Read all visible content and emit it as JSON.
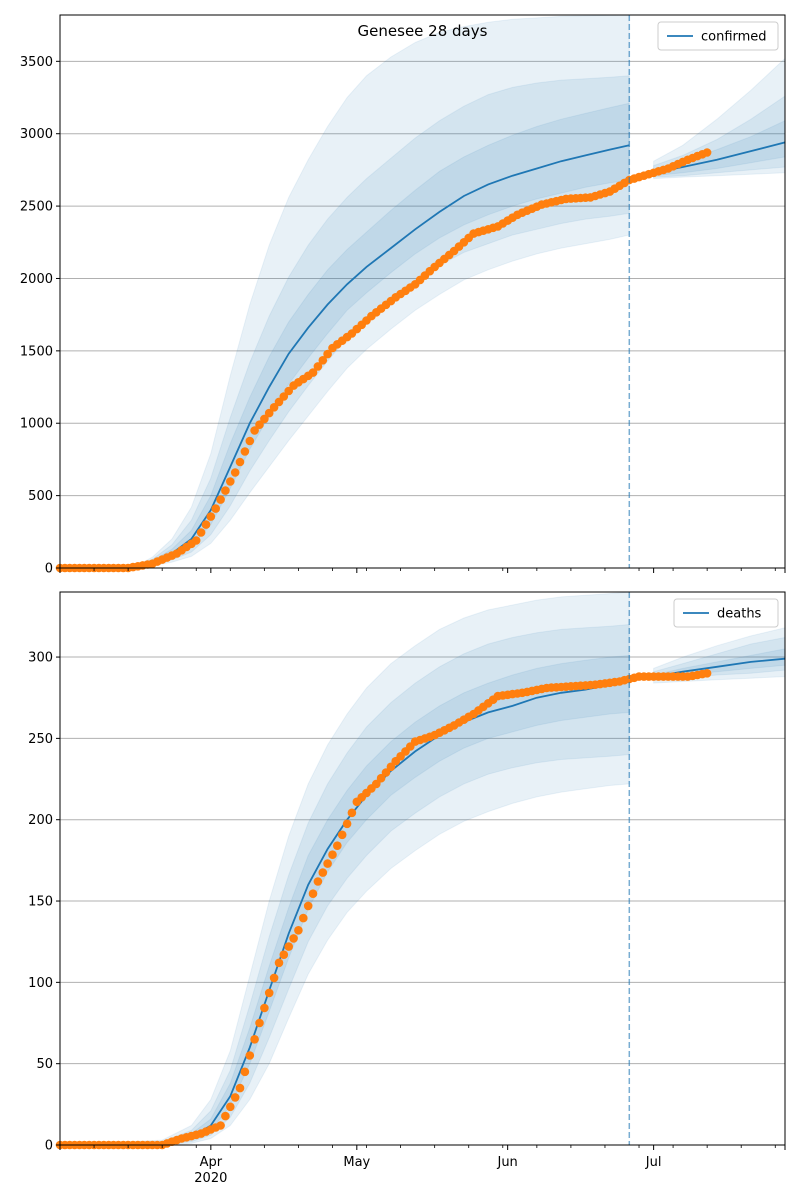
{
  "chart_data": [
    {
      "type": "line",
      "title": "Genesee 28 days",
      "xlabel": "",
      "ylabel": "",
      "x_range": [
        "2020-03-01",
        "2020-07-28"
      ],
      "ylim": [
        0,
        3820
      ],
      "yticks": [
        0,
        500,
        1000,
        1500,
        2000,
        2500,
        3000,
        3500
      ],
      "grid": "horizontal",
      "legend": {
        "placement": "top-right",
        "entries": [
          "confirmed"
        ]
      },
      "forecast_start": "2020-06-26",
      "series": [
        {
          "name": "confirmed",
          "kind": "model",
          "color": "#1f77b4",
          "x": [
            "2020-03-01",
            "2020-03-10",
            "2020-03-17",
            "2020-03-20",
            "2020-03-24",
            "2020-03-28",
            "2020-04-01",
            "2020-04-05",
            "2020-04-09",
            "2020-04-13",
            "2020-04-17",
            "2020-04-21",
            "2020-04-25",
            "2020-04-29",
            "2020-05-03",
            "2020-05-08",
            "2020-05-13",
            "2020-05-18",
            "2020-05-23",
            "2020-05-28",
            "2020-06-02",
            "2020-06-07",
            "2020-06-12",
            "2020-06-17",
            "2020-06-22",
            "2020-06-26",
            "2020-07-01",
            "2020-07-07",
            "2020-07-14",
            "2020-07-21",
            "2020-07-28"
          ],
          "y": [
            0,
            0,
            10,
            40,
            100,
            200,
            400,
            700,
            1000,
            1250,
            1480,
            1660,
            1820,
            1960,
            2080,
            2210,
            2340,
            2460,
            2570,
            2650,
            2710,
            2760,
            2810,
            2850,
            2890,
            2920,
            2730,
            2770,
            2820,
            2880,
            2940
          ],
          "bands": {
            "q25": [
              0,
              0,
              8,
              30,
              75,
              150,
              300,
              550,
              820,
              1050,
              1270,
              1450,
              1620,
              1780,
              1900,
              2040,
              2170,
              2280,
              2370,
              2440,
              2500,
              2550,
              2590,
              2630,
              2660,
              2680,
              2710,
              2730,
              2760,
              2800,
              2840
            ],
            "q75": [
              0,
              0,
              12,
              50,
              130,
              260,
              500,
              860,
              1180,
              1460,
              1700,
              1890,
              2060,
              2200,
              2320,
              2470,
              2610,
              2740,
              2840,
              2920,
              2990,
              3050,
              3100,
              3140,
              3180,
              3210,
              2750,
              2810,
              2890,
              2980,
              3090
            ],
            "q10": [
              0,
              0,
              6,
              22,
              55,
              110,
              230,
              430,
              670,
              880,
              1080,
              1260,
              1430,
              1590,
              1720,
              1860,
              1990,
              2090,
              2180,
              2240,
              2300,
              2340,
              2380,
              2410,
              2430,
              2450,
              2700,
              2710,
              2730,
              2750,
              2770
            ],
            "q90": [
              0,
              0,
              15,
              60,
              160,
              330,
              620,
              1040,
              1420,
              1740,
              2010,
              2230,
              2410,
              2560,
              2690,
              2830,
              2970,
              3090,
              3190,
              3270,
              3320,
              3350,
              3370,
              3380,
              3390,
              3400,
              2780,
              2850,
              2960,
              3100,
              3260
            ],
            "q02": [
              0,
              0,
              4,
              15,
              40,
              80,
              170,
              330,
              520,
              700,
              880,
              1050,
              1220,
              1380,
              1510,
              1650,
              1780,
              1890,
              1990,
              2060,
              2120,
              2170,
              2210,
              2240,
              2270,
              2300,
              2690,
              2700,
              2710,
              2720,
              2730
            ],
            "q98": [
              0,
              0,
              20,
              75,
              200,
              420,
              790,
              1330,
              1820,
              2230,
              2560,
              2820,
              3050,
              3250,
              3400,
              3530,
              3630,
              3700,
              3740,
              3770,
              3790,
              3800,
              3810,
              3815,
              3818,
              3820,
              2810,
              2920,
              3100,
              3300,
              3520
            ]
          }
        },
        {
          "name": "confirmed observed",
          "kind": "observed",
          "color": "#ff7f0e",
          "x": [
            "2020-03-01",
            "2020-03-15",
            "2020-03-20",
            "2020-03-25",
            "2020-03-29",
            "2020-04-02",
            "2020-04-06",
            "2020-04-10",
            "2020-04-14",
            "2020-04-18",
            "2020-04-22",
            "2020-04-26",
            "2020-04-30",
            "2020-05-04",
            "2020-05-09",
            "2020-05-13",
            "2020-05-17",
            "2020-05-21",
            "2020-05-25",
            "2020-05-30",
            "2020-06-03",
            "2020-06-08",
            "2020-06-13",
            "2020-06-18",
            "2020-06-22",
            "2020-06-26",
            "2020-06-30",
            "2020-07-04",
            "2020-07-08",
            "2020-07-12"
          ],
          "y": [
            0,
            0,
            30,
            100,
            190,
            410,
            660,
            950,
            1110,
            1260,
            1350,
            1520,
            1620,
            1740,
            1870,
            1960,
            2080,
            2190,
            2310,
            2360,
            2440,
            2510,
            2550,
            2560,
            2600,
            2680,
            2720,
            2760,
            2820,
            2870
          ]
        }
      ]
    },
    {
      "type": "line",
      "title": "",
      "xlabel": "",
      "ylabel": "",
      "x_range": [
        "2020-03-01",
        "2020-07-28"
      ],
      "xticks": [
        "Apr\n2020",
        "May",
        "Jun",
        "Jul"
      ],
      "ylim": [
        0,
        340
      ],
      "yticks": [
        0,
        50,
        100,
        150,
        200,
        250,
        300
      ],
      "grid": "horizontal",
      "legend": {
        "placement": "top-right",
        "entries": [
          "deaths"
        ]
      },
      "forecast_start": "2020-06-26",
      "series": [
        {
          "name": "deaths",
          "kind": "model",
          "color": "#1f77b4",
          "x": [
            "2020-03-01",
            "2020-03-22",
            "2020-03-28",
            "2020-04-01",
            "2020-04-05",
            "2020-04-09",
            "2020-04-13",
            "2020-04-17",
            "2020-04-21",
            "2020-04-25",
            "2020-04-29",
            "2020-05-03",
            "2020-05-08",
            "2020-05-13",
            "2020-05-18",
            "2020-05-23",
            "2020-05-28",
            "2020-06-02",
            "2020-06-07",
            "2020-06-12",
            "2020-06-17",
            "2020-06-22",
            "2020-06-26",
            "2020-07-01",
            "2020-07-07",
            "2020-07-14",
            "2020-07-21",
            "2020-07-28"
          ],
          "y": [
            0,
            1,
            5,
            12,
            30,
            60,
            95,
            130,
            160,
            182,
            200,
            215,
            230,
            242,
            252,
            260,
            266,
            270,
            275,
            278,
            280,
            283,
            285,
            288,
            291,
            294,
            297,
            299
          ],
          "bands": {
            "q25": [
              0,
              0.5,
              3,
              9,
              24,
              50,
              82,
              115,
              145,
              168,
              186,
              200,
              215,
              226,
              236,
              244,
              250,
              254,
              258,
              261,
              263,
              265,
              266,
              287,
              289,
              291,
              293,
              295
            ],
            "q75": [
              0,
              1.5,
              7,
              16,
              38,
              72,
              110,
              146,
              178,
              200,
              218,
              233,
              248,
              260,
              270,
              278,
              284,
              289,
              293,
              296,
              298,
              300,
              301,
              289,
              293,
              297,
              301,
              305
            ],
            "q10": [
              0,
              0.2,
              2,
              6,
              17,
              38,
              66,
              96,
              125,
              147,
              164,
              178,
              193,
              204,
              214,
              222,
              228,
              232,
              235,
              237,
              238,
              239,
              240,
              286,
              287,
              289,
              290,
              292
            ],
            "q90": [
              0,
              2,
              9,
              21,
              46,
              86,
              128,
              166,
              198,
              222,
              241,
              257,
              272,
              284,
              294,
              302,
              308,
              312,
              315,
              317,
              318,
              319,
              320,
              291,
              296,
              302,
              308,
              312
            ],
            "q02": [
              0,
              0,
              1,
              4,
              12,
              28,
              50,
              78,
              105,
              126,
              143,
              156,
              170,
              181,
              191,
              199,
              205,
              210,
              214,
              217,
              219,
              221,
              222,
              284,
              285,
              286,
              287,
              288
            ],
            "q98": [
              0,
              3,
              12,
              28,
              58,
              104,
              150,
              190,
              222,
              246,
              265,
              281,
              296,
              307,
              317,
              324,
              329,
              332,
              335,
              337,
              338,
              339,
              340,
              293,
              300,
              307,
              313,
              318
            ]
          }
        },
        {
          "name": "deaths observed",
          "kind": "observed",
          "color": "#ff7f0e",
          "x": [
            "2020-03-01",
            "2020-03-22",
            "2020-03-26",
            "2020-03-30",
            "2020-04-03",
            "2020-04-07",
            "2020-04-11",
            "2020-04-15",
            "2020-04-19",
            "2020-04-23",
            "2020-04-27",
            "2020-05-01",
            "2020-05-05",
            "2020-05-09",
            "2020-05-13",
            "2020-05-17",
            "2020-05-21",
            "2020-05-25",
            "2020-05-30",
            "2020-06-04",
            "2020-06-09",
            "2020-06-14",
            "2020-06-19",
            "2020-06-24",
            "2020-06-28",
            "2020-07-03",
            "2020-07-08",
            "2020-07-12"
          ],
          "y": [
            0,
            0,
            4,
            7,
            12,
            35,
            75,
            112,
            132,
            162,
            184,
            211,
            222,
            236,
            248,
            252,
            258,
            265,
            276,
            278,
            281,
            282,
            283,
            285,
            288,
            288,
            288,
            290
          ]
        }
      ]
    }
  ]
}
